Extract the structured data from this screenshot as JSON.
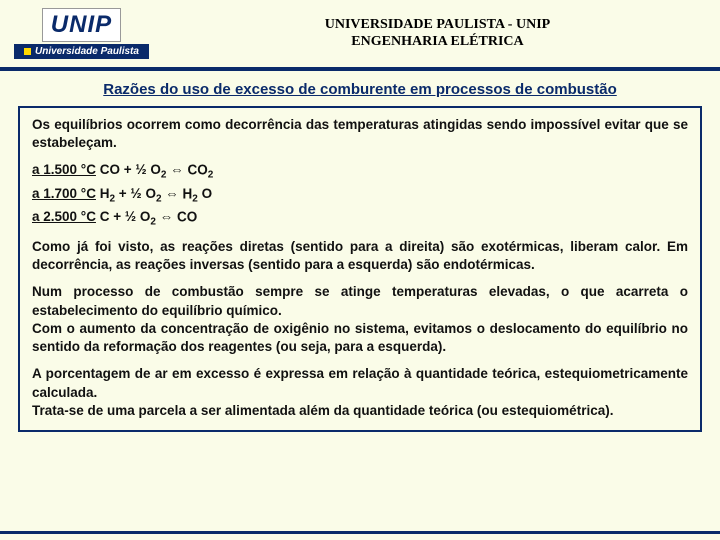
{
  "header": {
    "logo_top": "UNIP",
    "logo_bottom": "Universidade Paulista",
    "title_line1": "UNIVERSIDADE PAULISTA - UNIP",
    "title_line2": "ENGENHARIA ELÉTRICA"
  },
  "section_title": "Razões do uso de excesso de comburente em processos de combustão",
  "para_intro": "Os equilíbrios ocorrem como decorrência das temperaturas atingidas sendo impossível evitar que se estabeleçam.",
  "eq": {
    "t1": "a 1.500 °C",
    "r1a": "CO + ½ O",
    "r1b": " ⇔ CO",
    "t2": "a 1.700 °C",
    "r2a": "H",
    "r2b": " + ½ O",
    "r2c": " ⇔ H",
    "r2d": "O",
    "t3": "a 2.500 °C",
    "r3a": "C + ½ O",
    "r3b": " ⇔ CO"
  },
  "para2": "Como já foi visto, as reações diretas (sentido para a direita) são exotérmicas, liberam calor. Em decorrência, as reações inversas (sentido para a esquerda) são endotérmicas.",
  "para3a": "Num processo de combustão sempre se atinge temperaturas elevadas, o que acarreta o estabelecimento do equilíbrio químico.",
  "para3b": "Com o aumento da concentração de oxigênio no sistema, evitamos o deslocamento do equilíbrio no sentido da reformação dos reagentes (ou seja, para a esquerda).",
  "para4a": "A porcentagem de ar em excesso é expressa em relação à quantidade teórica, estequiometricamente calculada.",
  "para4b": "Trata-se de uma parcela a ser alimentada além da quantidade teórica (ou estequiométrica).",
  "colors": {
    "background": "#fafce8",
    "accent": "#0a2a6a",
    "logo_yellow": "#ffd800"
  }
}
